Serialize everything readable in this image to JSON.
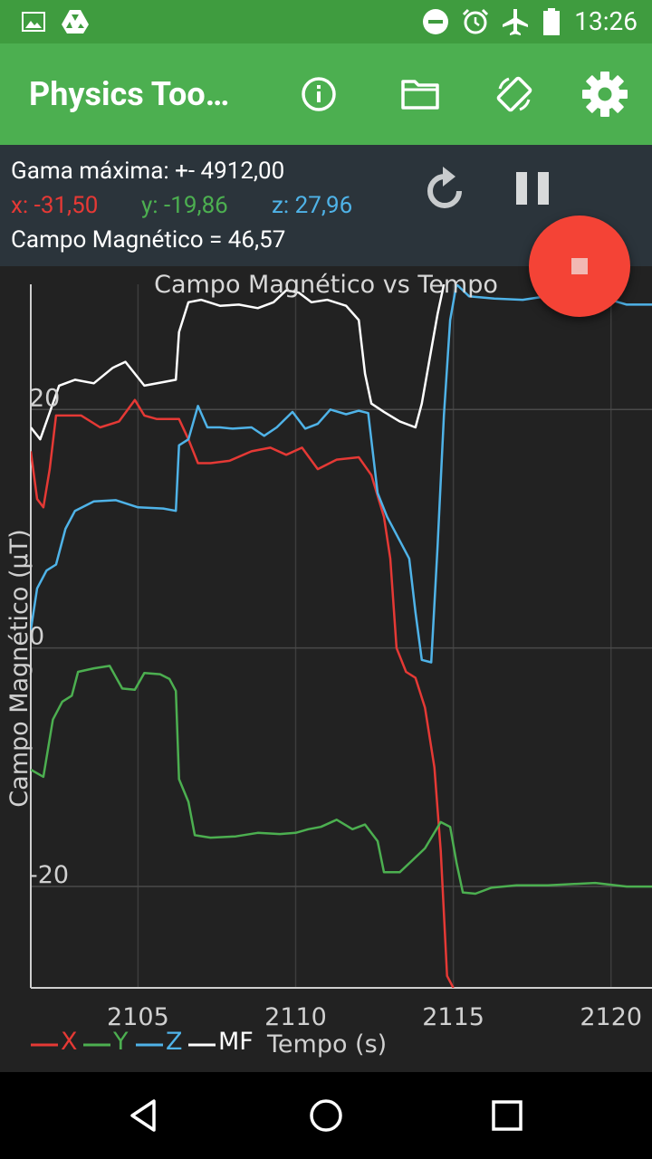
{
  "status_bar": {
    "time": "13:26",
    "left_icons": [
      "image-icon",
      "drive-icon"
    ],
    "right_icons": [
      "do-not-disturb-icon",
      "alarm-icon",
      "airplane-icon",
      "battery-icon"
    ]
  },
  "app_bar": {
    "title": "Physics Too…",
    "actions": [
      "info-icon",
      "folder-icon",
      "rotate-screen-icon",
      "settings-icon"
    ]
  },
  "readout": {
    "range": "Gama máxima: +- 4912,00",
    "x": "x: -31,50",
    "y": "y: -19,86",
    "z": "z: 27,96",
    "magnitude": "Campo Magnético =  46,57"
  },
  "colors": {
    "x": "#e53935",
    "y": "#4caf50",
    "z": "#4fb3e8",
    "mf": "#ffffff",
    "accent": "#4caf50",
    "fab": "#f44336"
  },
  "chart_data": {
    "type": "line",
    "title": "Campo Magnético vs Tempo",
    "xlabel": "Tempo (s)",
    "ylabel": "Campo Magnético (µT)",
    "xlim": [
      2101.6,
      2121.3
    ],
    "ylim": [
      -28.5,
      30.5
    ],
    "xticks": [
      2105,
      2110,
      2115,
      2120
    ],
    "yticks": [
      20,
      0,
      -20
    ],
    "grid": true,
    "legend": "bottom-left",
    "series": [
      {
        "name": "X",
        "color": "#e53935",
        "points": [
          [
            2101.6,
            16.5
          ],
          [
            2101.8,
            12.5
          ],
          [
            2102.0,
            11.8
          ],
          [
            2102.2,
            15.0
          ],
          [
            2102.4,
            19.5
          ],
          [
            2102.8,
            19.5
          ],
          [
            2103.2,
            19.5
          ],
          [
            2103.8,
            18.5
          ],
          [
            2104.4,
            19.0
          ],
          [
            2104.9,
            20.8
          ],
          [
            2105.2,
            19.5
          ],
          [
            2105.6,
            19.2
          ],
          [
            2106.3,
            19.2
          ],
          [
            2106.6,
            17.5
          ],
          [
            2106.9,
            15.5
          ],
          [
            2107.3,
            15.5
          ],
          [
            2107.9,
            15.7
          ],
          [
            2108.6,
            16.5
          ],
          [
            2109.2,
            16.8
          ],
          [
            2109.7,
            16.2
          ],
          [
            2110.2,
            16.8
          ],
          [
            2110.7,
            15.0
          ],
          [
            2111.3,
            15.8
          ],
          [
            2112.0,
            16.0
          ],
          [
            2112.4,
            14.5
          ],
          [
            2112.8,
            11.0
          ],
          [
            2113.0,
            7.5
          ],
          [
            2113.2,
            0.0
          ],
          [
            2113.5,
            -2.0
          ],
          [
            2113.8,
            -2.5
          ],
          [
            2114.1,
            -5.0
          ],
          [
            2114.4,
            -10.0
          ],
          [
            2114.6,
            -17.0
          ],
          [
            2114.8,
            -27.5
          ],
          [
            2115.0,
            -28.5
          ]
        ]
      },
      {
        "name": "Y",
        "color": "#4caf50",
        "points": [
          [
            2101.6,
            -10.2
          ],
          [
            2102.0,
            -10.8
          ],
          [
            2102.3,
            -6.0
          ],
          [
            2102.6,
            -4.5
          ],
          [
            2102.9,
            -4.0
          ],
          [
            2103.1,
            -2.0
          ],
          [
            2103.6,
            -1.7
          ],
          [
            2104.1,
            -1.5
          ],
          [
            2104.5,
            -3.4
          ],
          [
            2104.9,
            -3.5
          ],
          [
            2105.2,
            -2.1
          ],
          [
            2105.7,
            -2.2
          ],
          [
            2106.0,
            -2.6
          ],
          [
            2106.2,
            -3.6
          ],
          [
            2106.3,
            -11.0
          ],
          [
            2106.6,
            -12.9
          ],
          [
            2106.8,
            -15.7
          ],
          [
            2107.3,
            -15.9
          ],
          [
            2108.1,
            -15.8
          ],
          [
            2108.8,
            -15.5
          ],
          [
            2109.5,
            -15.6
          ],
          [
            2110.0,
            -15.5
          ],
          [
            2110.4,
            -15.2
          ],
          [
            2110.8,
            -15.0
          ],
          [
            2111.3,
            -14.4
          ],
          [
            2111.8,
            -15.2
          ],
          [
            2112.2,
            -14.8
          ],
          [
            2112.6,
            -16.2
          ],
          [
            2112.8,
            -18.8
          ],
          [
            2113.3,
            -18.8
          ],
          [
            2113.7,
            -17.8
          ],
          [
            2114.1,
            -16.8
          ],
          [
            2114.6,
            -14.6
          ],
          [
            2114.9,
            -15.0
          ],
          [
            2115.1,
            -18.0
          ],
          [
            2115.3,
            -20.5
          ],
          [
            2115.7,
            -20.6
          ],
          [
            2116.2,
            -20.1
          ],
          [
            2117.0,
            -19.9
          ],
          [
            2118.0,
            -19.9
          ],
          [
            2119.5,
            -19.7
          ],
          [
            2120.5,
            -20.0
          ],
          [
            2121.3,
            -20.0
          ]
        ]
      },
      {
        "name": "Z",
        "color": "#4fb3e8",
        "points": [
          [
            2101.6,
            1.5
          ],
          [
            2101.8,
            5.0
          ],
          [
            2102.1,
            6.5
          ],
          [
            2102.4,
            7.0
          ],
          [
            2102.7,
            10.0
          ],
          [
            2103.0,
            11.5
          ],
          [
            2103.6,
            12.3
          ],
          [
            2104.3,
            12.4
          ],
          [
            2105.0,
            11.8
          ],
          [
            2105.8,
            11.7
          ],
          [
            2106.2,
            11.5
          ],
          [
            2106.3,
            17.0
          ],
          [
            2106.6,
            17.5
          ],
          [
            2106.9,
            20.3
          ],
          [
            2107.2,
            18.5
          ],
          [
            2107.6,
            18.5
          ],
          [
            2108.0,
            18.4
          ],
          [
            2108.6,
            18.5
          ],
          [
            2109.0,
            17.8
          ],
          [
            2109.4,
            18.5
          ],
          [
            2109.9,
            19.8
          ],
          [
            2110.3,
            18.4
          ],
          [
            2110.7,
            18.8
          ],
          [
            2111.1,
            20.0
          ],
          [
            2111.6,
            19.6
          ],
          [
            2112.0,
            19.9
          ],
          [
            2112.3,
            19.7
          ],
          [
            2112.6,
            13.0
          ],
          [
            2112.9,
            11.0
          ],
          [
            2113.3,
            9.0
          ],
          [
            2113.6,
            7.5
          ],
          [
            2113.8,
            3.0
          ],
          [
            2114.0,
            -1.0
          ],
          [
            2114.3,
            -1.2
          ],
          [
            2114.5,
            8.5
          ],
          [
            2114.7,
            19.5
          ],
          [
            2114.9,
            27.5
          ],
          [
            2115.1,
            30.5
          ],
          [
            2115.5,
            29.5
          ],
          [
            2116.3,
            29.3
          ],
          [
            2117.2,
            29.2
          ],
          [
            2118.2,
            29.6
          ],
          [
            2119.2,
            29.8
          ],
          [
            2120.5,
            28.8
          ],
          [
            2121.3,
            28.8
          ]
        ]
      },
      {
        "name": "MF",
        "color": "#ffffff",
        "points": [
          [
            2101.6,
            18.5
          ],
          [
            2101.9,
            17.5
          ],
          [
            2102.1,
            19.0
          ],
          [
            2102.5,
            22.0
          ],
          [
            2103.0,
            22.5
          ],
          [
            2103.6,
            22.2
          ],
          [
            2104.2,
            23.5
          ],
          [
            2104.6,
            24.0
          ],
          [
            2105.2,
            22.0
          ],
          [
            2105.8,
            22.3
          ],
          [
            2106.2,
            22.5
          ],
          [
            2106.3,
            26.5
          ],
          [
            2106.6,
            29.0
          ],
          [
            2107.0,
            29.2
          ],
          [
            2107.6,
            28.7
          ],
          [
            2108.2,
            28.8
          ],
          [
            2108.8,
            28.5
          ],
          [
            2109.3,
            29.0
          ],
          [
            2109.7,
            30.0
          ],
          [
            2110.1,
            29.8
          ],
          [
            2110.5,
            29.0
          ],
          [
            2111.0,
            29.2
          ],
          [
            2111.6,
            28.7
          ],
          [
            2112.0,
            27.5
          ],
          [
            2112.2,
            23.0
          ],
          [
            2112.4,
            20.5
          ],
          [
            2112.8,
            19.8
          ],
          [
            2113.3,
            19.0
          ],
          [
            2113.8,
            18.5
          ],
          [
            2114.0,
            20.5
          ],
          [
            2114.3,
            25.0
          ],
          [
            2114.5,
            28.0
          ],
          [
            2114.7,
            30.5
          ]
        ]
      }
    ]
  },
  "nav_bar": {
    "buttons": [
      "back-icon",
      "home-icon",
      "recents-icon"
    ]
  }
}
